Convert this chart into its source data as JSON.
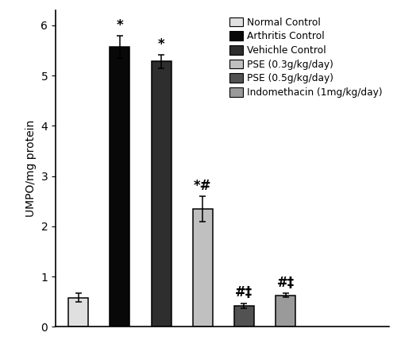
{
  "categories": [
    "Normal Control",
    "Arthritis Control",
    "Vehichle Control",
    "PSE (0.3g/kg/day)",
    "PSE (0.5g/kg/day)",
    "Indomethacin (1mg/kg/day)"
  ],
  "values": [
    0.58,
    5.57,
    5.28,
    2.35,
    0.42,
    0.63
  ],
  "errors": [
    0.09,
    0.22,
    0.13,
    0.25,
    0.05,
    0.04
  ],
  "bar_colors": [
    "#e0e0e0",
    "#080808",
    "#2e2e2e",
    "#c0c0c0",
    "#525252",
    "#9a9a9a"
  ],
  "bar_edgecolors": [
    "#000000",
    "#000000",
    "#000000",
    "#000000",
    "#000000",
    "#000000"
  ],
  "annotations": [
    "",
    "*",
    "*",
    "*#",
    "#‡",
    "#‡"
  ],
  "ylabel": "UMPO/mg protein",
  "ylim": [
    0,
    6.3
  ],
  "yticks": [
    0,
    1,
    2,
    3,
    4,
    5,
    6
  ],
  "legend_labels": [
    "Normal Control",
    "Arthritis Control",
    "Vehichle Control",
    "PSE (0.3g/kg/day)",
    "PSE (0.5g/kg/day)",
    "Indomethacin (1mg/kg/day)"
  ],
  "legend_colors": [
    "#e0e0e0",
    "#080808",
    "#2e2e2e",
    "#c0c0c0",
    "#525252",
    "#9a9a9a"
  ],
  "figsize": [
    5.0,
    4.33
  ],
  "dpi": 100,
  "bar_width": 0.48,
  "annotation_fontsize": 12,
  "ylabel_fontsize": 10,
  "legend_fontsize": 8.8,
  "tick_fontsize": 10
}
